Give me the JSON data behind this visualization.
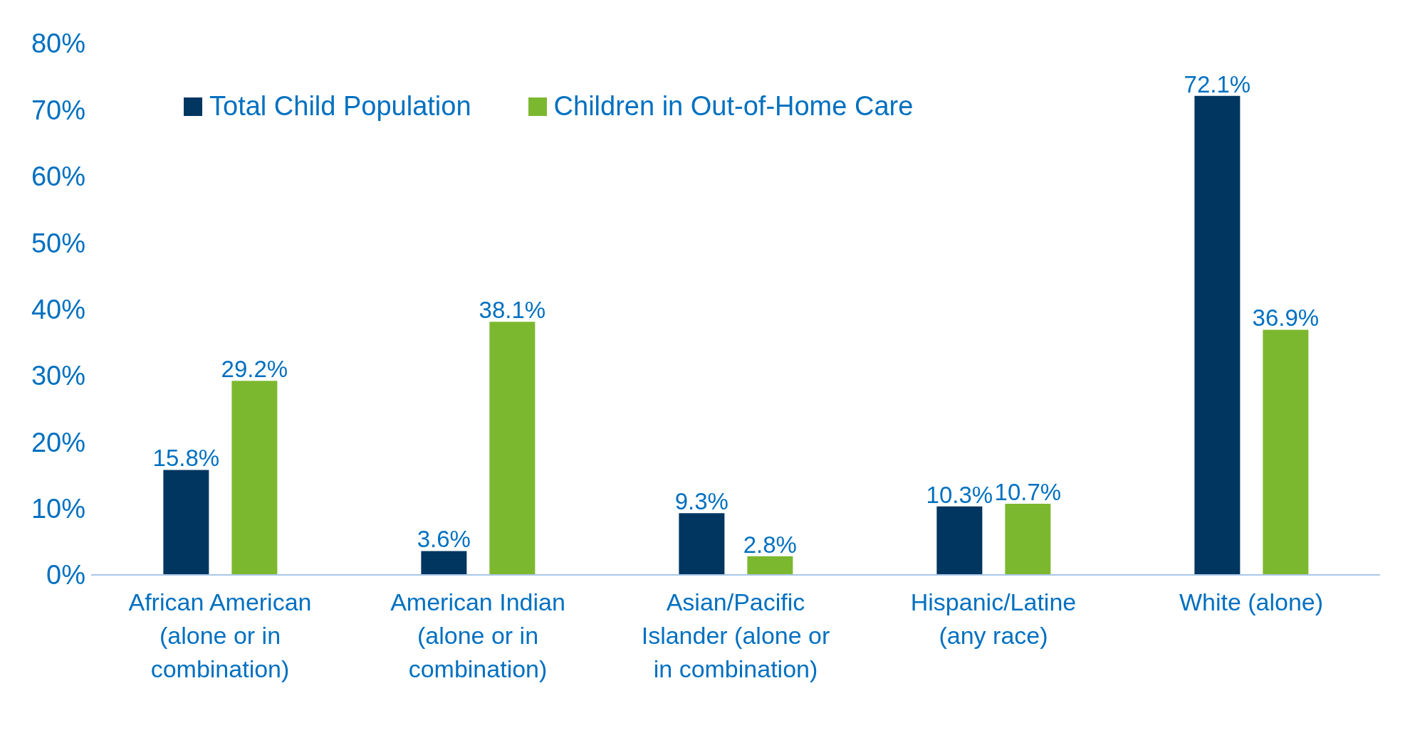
{
  "chart_data": {
    "type": "bar",
    "categories": [
      "African American (alone or in combination)",
      "American Indian (alone or in combination)",
      "Asian/Pacific Islander (alone or in combination)",
      "Hispanic/Latine (any race)",
      "White (alone)"
    ],
    "series": [
      {
        "name": "Total Child Population",
        "color": "#003660",
        "values": [
          15.8,
          3.6,
          9.3,
          10.3,
          72.1
        ],
        "value_labels": [
          "15.8%",
          "3.6%",
          "9.3%",
          "10.3%",
          "72.1%"
        ]
      },
      {
        "name": "Children in Out-of-Home Care",
        "color": "#7cb82f",
        "values": [
          29.2,
          38.1,
          2.8,
          10.7,
          36.9
        ],
        "value_labels": [
          "29.2%",
          "38.1%",
          "2.8%",
          "10.7%",
          "36.9%"
        ]
      }
    ],
    "ylim": [
      0,
      80
    ],
    "yticks": [
      {
        "value": 0,
        "label": "0%"
      },
      {
        "value": 10,
        "label": "10%"
      },
      {
        "value": 20,
        "label": "20%"
      },
      {
        "value": 30,
        "label": "30%"
      },
      {
        "value": 40,
        "label": "40%"
      },
      {
        "value": 50,
        "label": "50%"
      },
      {
        "value": 60,
        "label": "60%"
      },
      {
        "value": 70,
        "label": "70%"
      },
      {
        "value": 80,
        "label": "80%"
      }
    ],
    "grid": false,
    "legend": "top left"
  }
}
